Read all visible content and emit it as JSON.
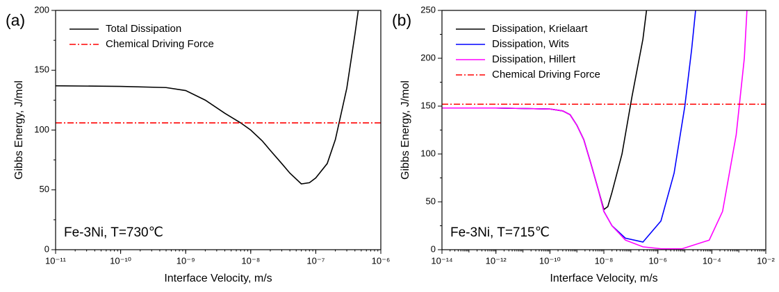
{
  "chart_data": [
    {
      "type": "line",
      "panel_label": "(a)",
      "annotation": "Fe-3Ni, T=730℃",
      "xlabel": "Interface Velocity, m/s",
      "ylabel": "Gibbs Energy, J/mol",
      "xscale": "log",
      "xlim": [
        1e-11,
        1e-06
      ],
      "ylim": [
        0,
        200
      ],
      "xticks": [
        {
          "value": 1e-11,
          "label": "10⁻¹¹"
        },
        {
          "value": 1e-10,
          "label": "10⁻¹⁰"
        },
        {
          "value": 1e-09,
          "label": "10⁻⁹"
        },
        {
          "value": 1e-08,
          "label": "10⁻⁸"
        },
        {
          "value": 1e-07,
          "label": "10⁻⁷"
        },
        {
          "value": 1e-06,
          "label": "10⁻⁶"
        }
      ],
      "yticks": [
        0,
        50,
        100,
        150,
        200
      ],
      "legend": "upper left",
      "series": [
        {
          "name": "Total Dissipation",
          "color": "#000000",
          "style": "solid",
          "x": [
            1e-11,
            1e-10,
            5e-10,
            1e-09,
            2e-09,
            4e-09,
            7e-09,
            1e-08,
            1.5e-08,
            2e-08,
            3e-08,
            4e-08,
            6e-08,
            8e-08,
            1e-07,
            1.5e-07,
            2e-07,
            3e-07,
            4e-07,
            4.5e-07
          ],
          "values": [
            137,
            136.5,
            135.5,
            133,
            125,
            114,
            106,
            100,
            91,
            83,
            72,
            64,
            55,
            56,
            60,
            72,
            92,
            135,
            180,
            200
          ]
        },
        {
          "name": "Chemical Driving Force",
          "color": "#ff0000",
          "style": "dashdot",
          "x": [
            1e-11,
            1e-06
          ],
          "values": [
            106,
            106
          ]
        }
      ]
    },
    {
      "type": "line",
      "panel_label": "(b)",
      "annotation": "Fe-3Ni, T=715℃",
      "xlabel": "Interface Velocity, m/s",
      "ylabel": "Gibbs Energy, J/mol",
      "xscale": "log",
      "xlim": [
        1e-14,
        0.01
      ],
      "ylim": [
        0,
        250
      ],
      "xticks": [
        {
          "value": 1e-14,
          "label": "10⁻¹⁴"
        },
        {
          "value": 1e-12,
          "label": "10⁻¹²"
        },
        {
          "value": 1e-10,
          "label": "10⁻¹⁰"
        },
        {
          "value": 1e-08,
          "label": "10⁻⁸"
        },
        {
          "value": 1e-06,
          "label": "10⁻⁶"
        },
        {
          "value": 0.0001,
          "label": "10⁻⁴"
        },
        {
          "value": 0.01,
          "label": "10⁻²"
        }
      ],
      "yticks": [
        0,
        50,
        100,
        150,
        200,
        250
      ],
      "legend": "upper left",
      "series": [
        {
          "name": "Dissipation, Krielaart",
          "color": "#000000",
          "style": "solid",
          "x": [
            1e-14,
            1e-12,
            1e-10,
            3e-10,
            5.6e-10,
            1e-09,
            1.8e-09,
            3.3e-09,
            6.3e-09,
            1e-08,
            1.4e-08,
            2e-08,
            4.7e-08,
            1.1e-07,
            2.8e-07,
            3.8e-07
          ],
          "values": [
            148,
            148,
            147,
            145,
            141,
            130,
            115,
            90,
            62,
            42,
            45,
            60,
            100,
            160,
            220,
            250
          ]
        },
        {
          "name": "Dissipation, Wits",
          "color": "#0000ff",
          "style": "solid",
          "x": [
            1e-14,
            1e-12,
            1e-10,
            3e-10,
            5.6e-10,
            1e-09,
            1.8e-09,
            3.3e-09,
            6.3e-09,
            1e-08,
            2e-08,
            6.3e-08,
            2.8e-07,
            1.3e-06,
            4e-06,
            1e-05,
            1.8e-05,
            2.5e-05
          ],
          "values": [
            148,
            148,
            147,
            145,
            141,
            130,
            115,
            90,
            62,
            40,
            25,
            12,
            8,
            30,
            80,
            150,
            210,
            250
          ]
        },
        {
          "name": "Dissipation, Hillert",
          "color": "#ff00ff",
          "style": "solid",
          "x": [
            1e-14,
            1e-12,
            1e-10,
            3e-10,
            5.6e-10,
            1e-09,
            1.8e-09,
            3.3e-09,
            6.3e-09,
            1e-08,
            2e-08,
            6.3e-08,
            2.8e-07,
            1.3e-06,
            8e-06,
            8e-05,
            0.00025,
            0.0008,
            0.0016,
            0.002
          ],
          "values": [
            148,
            148,
            147,
            145,
            141,
            130,
            115,
            90,
            62,
            40,
            25,
            10,
            3,
            1,
            1,
            10,
            40,
            120,
            200,
            250
          ]
        },
        {
          "name": "Chemical Driving Force",
          "color": "#ff0000",
          "style": "dashdot",
          "x": [
            1e-14,
            0.01
          ],
          "values": [
            152,
            152
          ]
        }
      ]
    }
  ]
}
